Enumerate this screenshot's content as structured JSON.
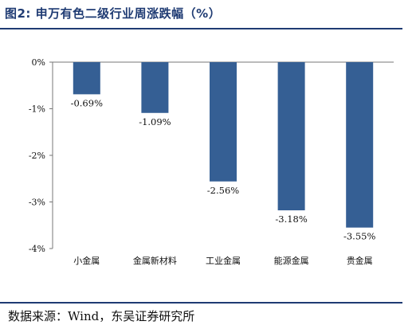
{
  "figure": {
    "title": "图2:  申万有色二级行业周涨跌幅（%）"
  },
  "colors": {
    "bar": "#355f94",
    "title": "#1f3b73",
    "axis": "#777777"
  },
  "chart_data": {
    "type": "bar",
    "categories": [
      "小金属",
      "金属新材料",
      "工业金属",
      "能源金属",
      "贵金属"
    ],
    "values": [
      -0.69,
      -1.09,
      -2.56,
      -3.18,
      -3.55
    ],
    "data_labels": [
      "-0.69%",
      "-1.09%",
      "-2.56%",
      "-3.18%",
      "-3.55%"
    ],
    "title": "",
    "xlabel": "",
    "ylabel": "",
    "ylim": [
      -4,
      0
    ],
    "yticks": [
      0,
      -1,
      -2,
      -3,
      -4
    ],
    "ytick_labels": [
      "0%",
      "-1%",
      "-2%",
      "-3%",
      "-4%"
    ],
    "grid": false,
    "legend": "none"
  },
  "source": {
    "text": "数据来源：Wind，东吴证券研究所"
  }
}
